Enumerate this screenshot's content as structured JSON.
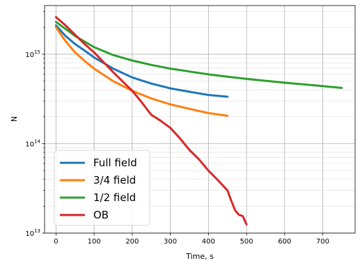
{
  "chart_data": {
    "type": "line",
    "title": "",
    "xlabel": "Time, s",
    "ylabel": "N",
    "xlim": [
      -30,
      785
    ],
    "ylim": [
      10000000000000.0,
      3500000000000000.0
    ],
    "yscale": "log",
    "grid": "both major and minor",
    "legend_position": "lower-left",
    "x_ticks": [
      0,
      100,
      200,
      300,
      400,
      500,
      600,
      700
    ],
    "y_ticks": [
      {
        "value": 10000000000000.0,
        "base": "10",
        "exp": "13"
      },
      {
        "value": 100000000000000.0,
        "base": "10",
        "exp": "14"
      },
      {
        "value": 1000000000000000.0,
        "base": "10",
        "exp": "15"
      }
    ],
    "series": [
      {
        "name": "Full field",
        "color": "#1f77b4",
        "x": [
          0,
          25,
          50,
          75,
          100,
          150,
          200,
          250,
          300,
          350,
          400,
          450
        ],
        "y": [
          2100000000000000.0,
          1600000000000000.0,
          1300000000000000.0,
          1100000000000000.0,
          920000000000000.0,
          690000000000000.0,
          550000000000000.0,
          470000000000000.0,
          415000000000000.0,
          380000000000000.0,
          350000000000000.0,
          335000000000000.0
        ]
      },
      {
        "name": "3/4 field",
        "color": "#ff7f0e",
        "x": [
          0,
          25,
          50,
          75,
          100,
          150,
          200,
          250,
          300,
          350,
          400,
          450
        ],
        "y": [
          2000000000000000.0,
          1400000000000000.0,
          1050000000000000.0,
          840000000000000.0,
          690000000000000.0,
          500000000000000.0,
          390000000000000.0,
          320000000000000.0,
          275000000000000.0,
          245000000000000.0,
          220000000000000.0,
          205000000000000.0
        ]
      },
      {
        "name": "1/2 field",
        "color": "#2ca02c",
        "x": [
          0,
          50,
          100,
          150,
          200,
          250,
          300,
          350,
          400,
          450,
          500,
          550,
          600,
          650,
          700,
          750
        ],
        "y": [
          2300000000000000.0,
          1600000000000000.0,
          1200000000000000.0,
          980000000000000.0,
          850000000000000.0,
          760000000000000.0,
          690000000000000.0,
          640000000000000.0,
          595000000000000.0,
          560000000000000.0,
          530000000000000.0,
          505000000000000.0,
          480000000000000.0,
          460000000000000.0,
          440000000000000.0,
          420000000000000.0
        ]
      },
      {
        "name": "OB",
        "color": "#d62728",
        "x": [
          0,
          25,
          50,
          75,
          100,
          150,
          200,
          225,
          250,
          275,
          300,
          325,
          350,
          375,
          400,
          425,
          450,
          460,
          470,
          480,
          490,
          500
        ],
        "y": [
          2600000000000000.0,
          2100000000000000.0,
          1650000000000000.0,
          1300000000000000.0,
          1050000000000000.0,
          630000000000000.0,
          390000000000000.0,
          290000000000000.0,
          210000000000000.0,
          180000000000000.0,
          150000000000000.0,
          115000000000000.0,
          85000000000000.0,
          67000000000000.0,
          50000000000000.0,
          39000000000000.0,
          30000000000000.0,
          23000000000000.0,
          18000000000000.0,
          16000000000000.0,
          15500000000000.0,
          12500000000000.0
        ]
      }
    ]
  }
}
